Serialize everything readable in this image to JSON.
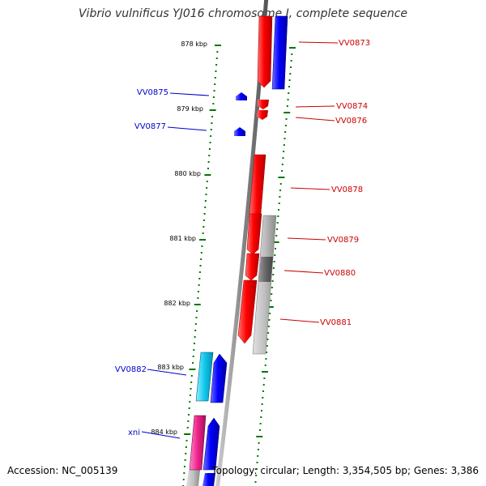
{
  "title": "Vibrio vulnificus YJ016 chromosome I, complete sequence",
  "accession_text": "Accession: NC_005139",
  "summary_text": "Topology: circular; Length: 3,354,505 bp; Genes: 3,386",
  "colors": {
    "forward_gene": "#ff0000",
    "reverse_gene": "#0000ff",
    "forward_label": "#cc0000",
    "reverse_label": "#0000cc",
    "backbone": "#888888",
    "ticks": "#007700",
    "grey_feature": "#bbbbbb",
    "cyan_gene": "#22ccee",
    "magenta_gene": "#ee2288"
  },
  "kbp_ticks": [
    "878 kbp",
    "879 kbp",
    "880 kbp",
    "881 kbp",
    "882 kbp",
    "883 kbp",
    "884 kbp"
  ],
  "gene_labels": {
    "VV0873": "VV0873",
    "VV0874": "VV0874",
    "VV0875": "VV0875",
    "VV0876": "VV0876",
    "VV0877": "VV0877",
    "VV0878": "VV0878",
    "VV0879": "VV0879",
    "VV0880": "VV0880",
    "VV0881": "VV0881",
    "VV0882": "VV0882",
    "xni": "xni"
  }
}
